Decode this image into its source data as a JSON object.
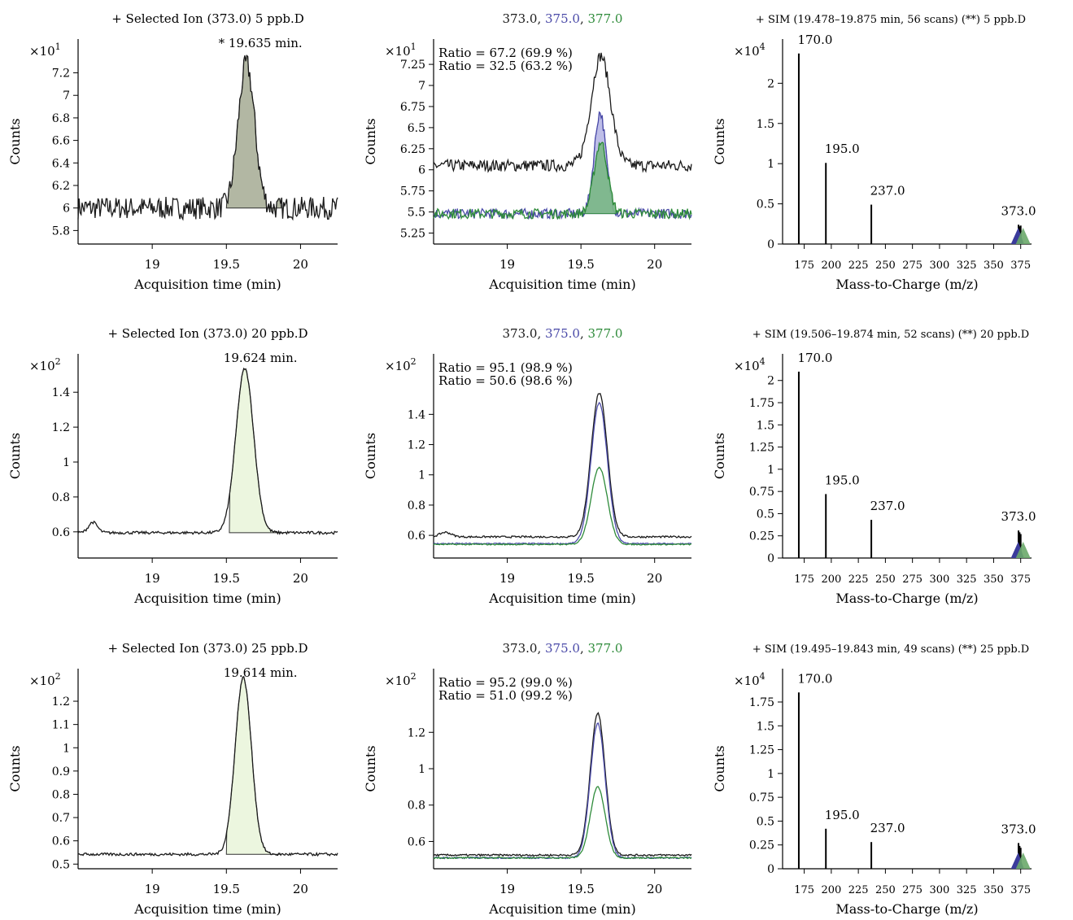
{
  "colors": {
    "black": "#1a1a1a",
    "blue": "#4a4aa8",
    "green": "#2e8b3a",
    "fill_gray": "#aab09a",
    "fill_light": "#eaf6dc",
    "fill_blue": "#b8b8e6",
    "fill_green": "#7ab886",
    "marker_blue": "#3b3b9c",
    "marker_green": "#6aa86a"
  },
  "chart_data": [
    {
      "type": "line",
      "title": "+ Selected Ion (373.0) 5 ppb.D",
      "annotation": "* 19.635 min.",
      "xlabel": "Acquisition time (min)",
      "ylabel": "Counts",
      "multiplier": "×10",
      "exponent": "1",
      "xlim": [
        18.5,
        20.25
      ],
      "ylim": [
        5.68,
        7.5
      ],
      "xticks": [
        19,
        19.5,
        20
      ],
      "xtick_labels": [
        "19",
        "19.5",
        "20"
      ],
      "yticks": [
        5.8,
        6,
        6.2,
        6.4,
        6.6,
        6.8,
        7,
        7.2
      ],
      "ytick_labels": [
        "5.8",
        "6",
        "6.2",
        "6.4",
        "6.6",
        "6.8",
        "7",
        "7.2"
      ],
      "series": [
        {
          "color": "black",
          "fill": "fill_gray",
          "baseline": 6.0,
          "noise": 0.1,
          "fill_range": [
            19.5,
            19.87
          ],
          "peaks": [
            {
              "c": 19.635,
              "w": 0.055,
              "h": 1.28
            }
          ]
        }
      ]
    },
    {
      "type": "line",
      "title_parts": [
        {
          "text": "373.0",
          "color": "black"
        },
        {
          "text": ", ",
          "color": "black"
        },
        {
          "text": "375.0",
          "color": "blue"
        },
        {
          "text": ", ",
          "color": "black"
        },
        {
          "text": "377.0",
          "color": "green"
        }
      ],
      "legend": [
        {
          "text": "Ratio = 67.2 (69.9 %)",
          "color": "blue"
        },
        {
          "text": "Ratio = 32.5 (63.2 %)",
          "color": "green"
        }
      ],
      "xlabel": "Acquisition time (min)",
      "ylabel": "Counts",
      "multiplier": "×10",
      "exponent": "1",
      "xlim": [
        18.5,
        20.25
      ],
      "ylim": [
        5.12,
        7.55
      ],
      "xticks": [
        19,
        19.5,
        20
      ],
      "xtick_labels": [
        "19",
        "19.5",
        "20"
      ],
      "yticks": [
        5.25,
        5.5,
        5.75,
        6,
        6.25,
        6.5,
        6.75,
        7,
        7.25
      ],
      "ytick_labels": [
        "5.25",
        "5.5",
        "5.75",
        "6",
        "6.25",
        "6.5",
        "6.75",
        "7",
        "7.25"
      ],
      "series": [
        {
          "color": "black",
          "baseline": 6.05,
          "noise": 0.07,
          "peaks": [
            {
              "c": 19.635,
              "w": 0.065,
              "h": 1.3
            }
          ]
        },
        {
          "color": "blue",
          "fill": "fill_blue",
          "fill_range": [
            19.5,
            19.75
          ],
          "baseline": 5.48,
          "noise": 0.06,
          "peaks": [
            {
              "c": 19.63,
              "w": 0.04,
              "h": 1.2
            }
          ]
        },
        {
          "color": "green",
          "fill": "fill_green",
          "fill_range": [
            19.52,
            19.74
          ],
          "baseline": 5.48,
          "noise": 0.06,
          "peaks": [
            {
              "c": 19.635,
              "w": 0.045,
              "h": 0.85
            }
          ]
        }
      ]
    },
    {
      "type": "bar",
      "title": "+ SIM (19.478–19.875 min, 56 scans) (**) 5 ppb.D",
      "xlabel": "Mass-to-Charge (m/z)",
      "ylabel": "Counts",
      "multiplier": "×10",
      "exponent": "4",
      "xlim": [
        155,
        385
      ],
      "ylim": [
        0,
        2.55
      ],
      "xticks": [
        175,
        200,
        225,
        250,
        275,
        300,
        325,
        350,
        375
      ],
      "xtick_labels": [
        "175",
        "200",
        "225",
        "250",
        "275",
        "300",
        "325",
        "350",
        "375"
      ],
      "yticks": [
        0,
        0.5,
        1,
        1.5,
        2
      ],
      "ytick_labels": [
        "0",
        "0.5",
        "1",
        "1.5",
        "2"
      ],
      "bars": [
        {
          "x": 170,
          "y": 2.37,
          "label": "170.0"
        },
        {
          "x": 195,
          "y": 1.01,
          "label": "195.0"
        },
        {
          "x": 237,
          "y": 0.49,
          "label": "237.0"
        },
        {
          "x": 373,
          "y": 0.24,
          "label": "373.0"
        },
        {
          "x": 374,
          "y": 0.22,
          "label": ""
        },
        {
          "x": 375,
          "y": 0.23,
          "label": ""
        }
      ],
      "marker_x": 375
    },
    {
      "type": "line",
      "title": "+ Selected Ion (373.0) 20 ppb.D",
      "annotation": "19.624 min.",
      "xlabel": "Acquisition time (min)",
      "ylabel": "Counts",
      "multiplier": "×10",
      "exponent": "2",
      "xlim": [
        18.5,
        20.25
      ],
      "ylim": [
        0.45,
        1.62
      ],
      "xticks": [
        19,
        19.5,
        20
      ],
      "xtick_labels": [
        "19",
        "19.5",
        "20"
      ],
      "yticks": [
        0.6,
        0.8,
        1,
        1.2,
        1.4
      ],
      "ytick_labels": [
        "0.6",
        "0.8",
        "1",
        "1.2",
        "1.4"
      ],
      "series": [
        {
          "color": "black",
          "fill": "fill_light",
          "fill_range": [
            19.52,
            19.88
          ],
          "baseline": 0.595,
          "noise": 0.008,
          "peaks": [
            {
              "c": 19.624,
              "w": 0.06,
              "h": 0.94
            },
            {
              "c": 18.6,
              "w": 0.03,
              "h": 0.06
            }
          ]
        }
      ]
    },
    {
      "type": "line",
      "title_parts": [
        {
          "text": "373.0",
          "color": "black"
        },
        {
          "text": ", ",
          "color": "black"
        },
        {
          "text": "375.0",
          "color": "blue"
        },
        {
          "text": ", ",
          "color": "black"
        },
        {
          "text": "377.0",
          "color": "green"
        }
      ],
      "legend": [
        {
          "text": "Ratio = 95.1 (98.9 %)",
          "color": "blue"
        },
        {
          "text": "Ratio = 50.6 (98.6 %)",
          "color": "green"
        }
      ],
      "xlabel": "Acquisition time (min)",
      "ylabel": "Counts",
      "multiplier": "×10",
      "exponent": "2",
      "xlim": [
        18.5,
        20.25
      ],
      "ylim": [
        0.45,
        1.8
      ],
      "xticks": [
        19,
        19.5,
        20
      ],
      "xtick_labels": [
        "19",
        "19.5",
        "20"
      ],
      "yticks": [
        0.6,
        0.8,
        1,
        1.2,
        1.4
      ],
      "ytick_labels": [
        "0.6",
        "0.8",
        "1",
        "1.2",
        "1.4"
      ],
      "series": [
        {
          "color": "black",
          "baseline": 0.59,
          "noise": 0.006,
          "peaks": [
            {
              "c": 19.624,
              "w": 0.055,
              "h": 0.95
            },
            {
              "c": 18.58,
              "w": 0.04,
              "h": 0.03
            }
          ]
        },
        {
          "color": "blue",
          "baseline": 0.545,
          "noise": 0.004,
          "peaks": [
            {
              "c": 19.624,
              "w": 0.055,
              "h": 0.93
            }
          ]
        },
        {
          "color": "green",
          "baseline": 0.54,
          "noise": 0.004,
          "peaks": [
            {
              "c": 19.624,
              "w": 0.055,
              "h": 0.51
            }
          ]
        }
      ]
    },
    {
      "type": "bar",
      "title": "+ SIM (19.506–19.874 min, 52 scans) (**) 20 ppb.D",
      "xlabel": "Mass-to-Charge (m/z)",
      "ylabel": "Counts",
      "multiplier": "×10",
      "exponent": "4",
      "xlim": [
        155,
        385
      ],
      "ylim": [
        0,
        2.3
      ],
      "xticks": [
        175,
        200,
        225,
        250,
        275,
        300,
        325,
        350,
        375
      ],
      "xtick_labels": [
        "175",
        "200",
        "225",
        "250",
        "275",
        "300",
        "325",
        "350",
        "375"
      ],
      "yticks": [
        0,
        0.25,
        0.5,
        0.75,
        1,
        1.25,
        1.5,
        1.75,
        2
      ],
      "ytick_labels": [
        "0",
        "0.25",
        "0.5",
        "0.75",
        "1",
        "1.25",
        "1.5",
        "1.75",
        "2"
      ],
      "bars": [
        {
          "x": 170,
          "y": 2.1,
          "label": "170.0"
        },
        {
          "x": 195,
          "y": 0.72,
          "label": "195.0"
        },
        {
          "x": 237,
          "y": 0.43,
          "label": "237.0"
        },
        {
          "x": 373,
          "y": 0.31,
          "label": "373.0"
        },
        {
          "x": 374,
          "y": 0.29,
          "label": ""
        },
        {
          "x": 375,
          "y": 0.27,
          "label": ""
        }
      ],
      "marker_x": 375
    },
    {
      "type": "line",
      "title": "+ Selected Ion (373.0) 25 ppb.D",
      "annotation": "19.614 min.",
      "xlabel": "Acquisition time (min)",
      "ylabel": "Counts",
      "multiplier": "×10",
      "exponent": "2",
      "xlim": [
        18.5,
        20.25
      ],
      "ylim": [
        0.48,
        1.34
      ],
      "xticks": [
        19,
        19.5,
        20
      ],
      "xtick_labels": [
        "19",
        "19.5",
        "20"
      ],
      "yticks": [
        0.5,
        0.6,
        0.7,
        0.8,
        0.9,
        1,
        1.1,
        1.2
      ],
      "ytick_labels": [
        "0.5",
        "0.6",
        "0.7",
        "0.8",
        "0.9",
        "1",
        "1.1",
        "1.2"
      ],
      "series": [
        {
          "color": "black",
          "fill": "fill_light",
          "fill_range": [
            19.5,
            19.86
          ],
          "baseline": 0.542,
          "noise": 0.006,
          "peaks": [
            {
              "c": 19.614,
              "w": 0.055,
              "h": 0.76
            }
          ]
        }
      ]
    },
    {
      "type": "line",
      "title_parts": [
        {
          "text": "373.0",
          "color": "black"
        },
        {
          "text": ", ",
          "color": "black"
        },
        {
          "text": "375.0",
          "color": "blue"
        },
        {
          "text": ", ",
          "color": "black"
        },
        {
          "text": "377.0",
          "color": "green"
        }
      ],
      "legend": [
        {
          "text": "Ratio = 95.2 (99.0 %)",
          "color": "blue"
        },
        {
          "text": "Ratio = 51.0 (99.2 %)",
          "color": "green"
        }
      ],
      "xlabel": "Acquisition time (min)",
      "ylabel": "Counts",
      "multiplier": "×10",
      "exponent": "2",
      "xlim": [
        18.5,
        20.25
      ],
      "ylim": [
        0.45,
        1.55
      ],
      "xticks": [
        19,
        19.5,
        20
      ],
      "xtick_labels": [
        "19",
        "19.5",
        "20"
      ],
      "yticks": [
        0.6,
        0.8,
        1,
        1.2
      ],
      "ytick_labels": [
        "0.6",
        "0.8",
        "1",
        "1.2"
      ],
      "series": [
        {
          "color": "black",
          "baseline": 0.525,
          "noise": 0.005,
          "peaks": [
            {
              "c": 19.614,
              "w": 0.05,
              "h": 0.78
            }
          ]
        },
        {
          "color": "blue",
          "baseline": 0.51,
          "noise": 0.004,
          "peaks": [
            {
              "c": 19.614,
              "w": 0.05,
              "h": 0.74
            }
          ]
        },
        {
          "color": "green",
          "baseline": 0.51,
          "noise": 0.004,
          "peaks": [
            {
              "c": 19.614,
              "w": 0.05,
              "h": 0.39
            }
          ]
        }
      ]
    },
    {
      "type": "bar",
      "title": "+ SIM (19.495–19.843 min, 49 scans) (**) 25 ppb.D",
      "xlabel": "Mass-to-Charge (m/z)",
      "ylabel": "Counts",
      "multiplier": "×10",
      "exponent": "4",
      "xlim": [
        155,
        385
      ],
      "ylim": [
        0,
        2.1
      ],
      "xticks": [
        175,
        200,
        225,
        250,
        275,
        300,
        325,
        350,
        375
      ],
      "xtick_labels": [
        "175",
        "200",
        "225",
        "250",
        "275",
        "300",
        "325",
        "350",
        "375"
      ],
      "yticks": [
        0,
        0.25,
        0.5,
        0.75,
        1,
        1.25,
        1.5,
        1.75
      ],
      "ytick_labels": [
        "0",
        "0.25",
        "0.5",
        "0.75",
        "1",
        "1.25",
        "1.5",
        "1.75"
      ],
      "bars": [
        {
          "x": 170,
          "y": 1.85,
          "label": "170.0"
        },
        {
          "x": 195,
          "y": 0.42,
          "label": "195.0"
        },
        {
          "x": 237,
          "y": 0.28,
          "label": "237.0"
        },
        {
          "x": 373,
          "y": 0.27,
          "label": "373.0"
        },
        {
          "x": 374,
          "y": 0.24,
          "label": ""
        },
        {
          "x": 375,
          "y": 0.22,
          "label": ""
        }
      ],
      "marker_x": 375
    }
  ]
}
